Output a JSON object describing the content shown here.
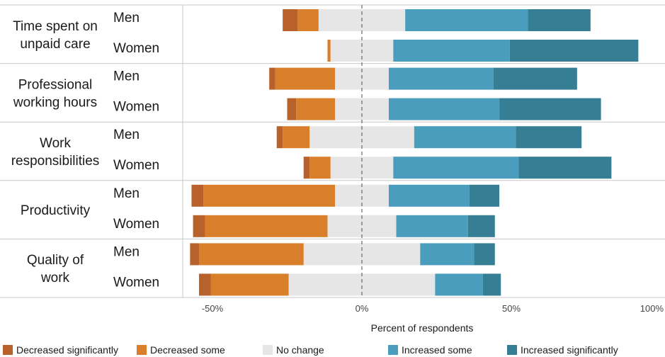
{
  "chart_data": {
    "type": "bar",
    "orientation": "horizontal",
    "stacked": "diverging",
    "xlabel": "Percent of respondents",
    "xlim": [
      -62,
      100
    ],
    "xticks": [
      {
        "value": -50,
        "label": "-50%"
      },
      {
        "value": 0,
        "label": "0%"
      },
      {
        "value": 50,
        "label": "50%"
      },
      {
        "value": 100,
        "label": "100%"
      }
    ],
    "grid": false,
    "legend_position": "bottom",
    "series": [
      {
        "name": "Decreased significantly",
        "key": "dec_sig",
        "color": "#b8612a"
      },
      {
        "name": "Decreased some",
        "key": "dec_some",
        "color": "#d97f2b"
      },
      {
        "name": "No change",
        "key": "no_change",
        "color": "#e6e6e6"
      },
      {
        "name": "Increased some",
        "key": "inc_some",
        "color": "#4a9dbd"
      },
      {
        "name": "Increased significantly",
        "key": "inc_sig",
        "color": "#367e93"
      }
    ],
    "groups": [
      {
        "label": "Time spent on\nunpaid care",
        "rows": [
          {
            "label": "Men",
            "dec_sig": 5,
            "dec_some": 7,
            "no_change": 29,
            "inc_some": 41,
            "inc_sig": 21
          },
          {
            "label": "Women",
            "dec_sig": 0,
            "dec_some": 1,
            "no_change": 21,
            "inc_some": 39,
            "inc_sig": 43
          }
        ]
      },
      {
        "label": "Professional\nworking hours",
        "rows": [
          {
            "label": "Men",
            "dec_sig": 2,
            "dec_some": 20,
            "no_change": 18,
            "inc_some": 35,
            "inc_sig": 28
          },
          {
            "label": "Women",
            "dec_sig": 3,
            "dec_some": 13,
            "no_change": 18,
            "inc_some": 37,
            "inc_sig": 34
          }
        ]
      },
      {
        "label": "Work\nresponsibilities",
        "rows": [
          {
            "label": "Men",
            "dec_sig": 2,
            "dec_some": 9,
            "no_change": 35,
            "inc_some": 34,
            "inc_sig": 22
          },
          {
            "label": "Women",
            "dec_sig": 2,
            "dec_some": 7,
            "no_change": 21,
            "inc_some": 42,
            "inc_sig": 31
          }
        ]
      },
      {
        "label": "Productivity",
        "rows": [
          {
            "label": "Men",
            "dec_sig": 4,
            "dec_some": 44,
            "no_change": 18,
            "inc_some": 27,
            "inc_sig": 10
          },
          {
            "label": "Women",
            "dec_sig": 4,
            "dec_some": 41,
            "no_change": 23,
            "inc_some": 24,
            "inc_sig": 9
          }
        ]
      },
      {
        "label": "Quality of\nwork",
        "rows": [
          {
            "label": "Men",
            "dec_sig": 3,
            "dec_some": 35,
            "no_change": 39,
            "inc_some": 18,
            "inc_sig": 7
          },
          {
            "label": "Women",
            "dec_sig": 4,
            "dec_some": 26,
            "no_change": 49,
            "inc_some": 16,
            "inc_sig": 6
          }
        ]
      }
    ]
  }
}
